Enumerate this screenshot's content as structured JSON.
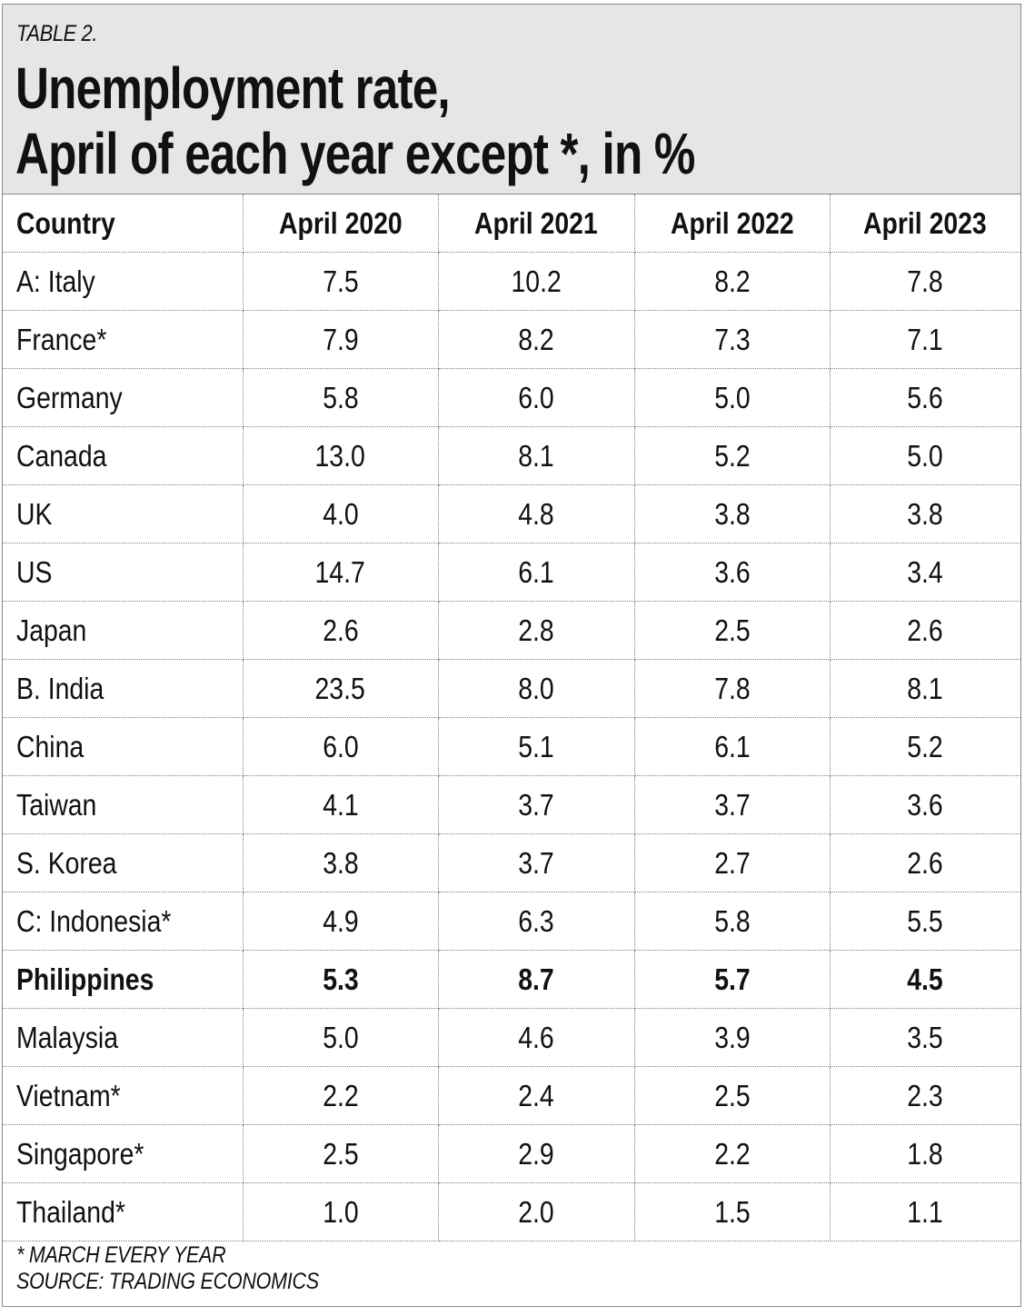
{
  "table_label": "TABLE 2.",
  "title_line1": "Unemployment rate,",
  "title_line2": "April of each year except *, in %",
  "columns": [
    "Country",
    "April 2020",
    "April 2021",
    "April 2022",
    "April 2023"
  ],
  "rows": [
    [
      "A: Italy",
      "7.5",
      "10.2",
      "8.2",
      "7.8"
    ],
    [
      "France*",
      "7.9",
      "8.2",
      "7.3",
      "7.1"
    ],
    [
      "Germany",
      "5.8",
      "6.0",
      "5.0",
      "5.6"
    ],
    [
      "Canada",
      "13.0",
      "8.1",
      "5.2",
      "5.0"
    ],
    [
      "UK",
      "4.0",
      "4.8",
      "3.8",
      "3.8"
    ],
    [
      "US",
      "14.7",
      "6.1",
      "3.6",
      "3.4"
    ],
    [
      "Japan",
      "2.6",
      "2.8",
      "2.5",
      "2.6"
    ],
    [
      "B. India",
      "23.5",
      "8.0",
      "7.8",
      "8.1"
    ],
    [
      "China",
      "6.0",
      "5.1",
      "6.1",
      "5.2"
    ],
    [
      "Taiwan",
      "4.1",
      "3.7",
      "3.7",
      "3.6"
    ],
    [
      "S. Korea",
      "3.8",
      "3.7",
      "2.7",
      "2.6"
    ],
    [
      "C: Indonesia*",
      "4.9",
      "6.3",
      "5.8",
      "5.5"
    ],
    [
      "Philippines",
      "5.3",
      "8.7",
      "5.7",
      "4.5"
    ],
    [
      "Malaysia",
      "5.0",
      "4.6",
      "3.9",
      "3.5"
    ],
    [
      "Vietnam*",
      "2.2",
      "2.4",
      "2.5",
      "2.3"
    ],
    [
      "Singapore*",
      "2.5",
      "2.9",
      "2.2",
      "1.8"
    ],
    [
      "Thailand*",
      "1.0",
      "2.0",
      "1.5",
      "1.1"
    ]
  ],
  "highlighted_row": "Philippines",
  "footnote": "* MARCH EVERY YEAR",
  "source": "SOURCE: TRADING ECONOMICS",
  "colors": {
    "header_background": "#e6e6e6",
    "border": "#7c7c7c",
    "text": "#111111"
  }
}
